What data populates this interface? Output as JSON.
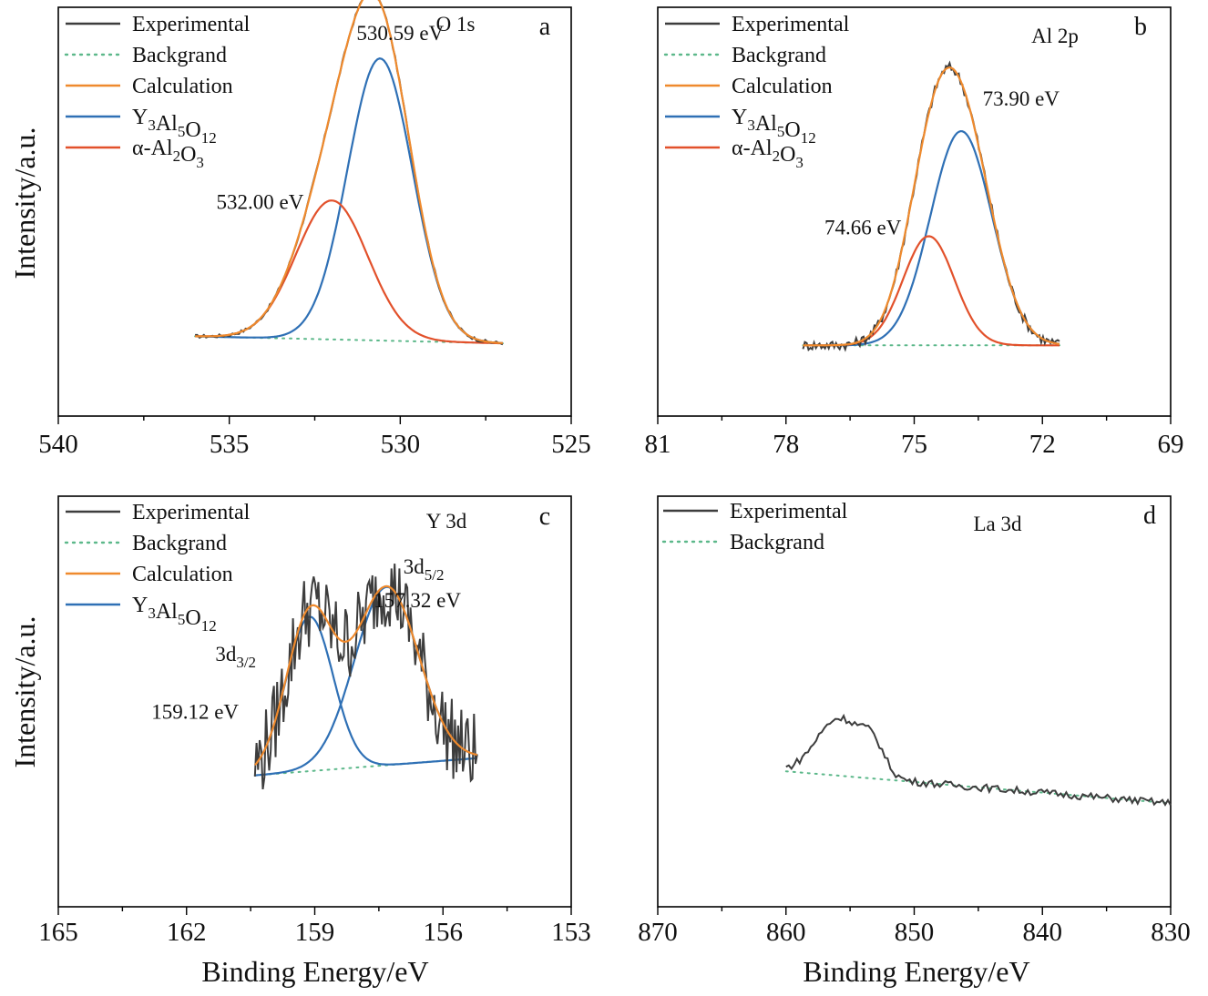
{
  "colors": {
    "experimental": "#3d3d3d",
    "background": "#5cb88a",
    "calculation": "#ef8a2d",
    "yag": "#2f70b5",
    "alumina": "#e2512b"
  },
  "y_axis_label": "Intensity/a.u.",
  "x_axis_label": "Binding Energy/eV",
  "chart_data": [
    {
      "panel": "a",
      "type": "line",
      "title": "O 1s",
      "xlim": [
        540,
        525
      ],
      "ylim": [
        0,
        1
      ],
      "x_ticks": [
        "540",
        "535",
        "530",
        "525"
      ],
      "x_tick_values": [
        540,
        535,
        530,
        525
      ],
      "x_range": [
        536,
        527
      ],
      "background_ends": [
        0.195,
        0.178
      ],
      "legend": [
        {
          "key": "experimental",
          "label": "Experimental",
          "style": "solid"
        },
        {
          "key": "background",
          "label": "Backgrand",
          "style": "dotted"
        },
        {
          "key": "calculation",
          "label": "Calculation",
          "style": "solid"
        },
        {
          "key": "yag",
          "label": "Y",
          "sub1": "3",
          "mid1": "Al",
          "sub2": "5",
          "mid2": "O",
          "sub3": "12",
          "style": "solid"
        },
        {
          "key": "alumina",
          "label": "α-Al",
          "sub1": "2",
          "mid1": "O",
          "sub2": "3",
          "style": "solid"
        }
      ],
      "peaks": [
        {
          "key": "yag",
          "center": 530.59,
          "amp": 0.69,
          "sigma": 0.95
        },
        {
          "key": "alumina",
          "center": 532.0,
          "amp": 0.34,
          "sigma": 1.05
        }
      ],
      "noise": 0.004,
      "annotations": [
        {
          "text": "530.59 eV",
          "x": 530.0,
          "y": 0.92
        },
        {
          "text": "532.00 eV",
          "x": 534.1,
          "y": 0.507
        }
      ]
    },
    {
      "panel": "b",
      "type": "line",
      "title": "Al 2p",
      "xlim": [
        81,
        69
      ],
      "ylim": [
        0,
        1
      ],
      "x_ticks": [
        "81",
        "78",
        "75",
        "72",
        "69"
      ],
      "x_tick_values": [
        81,
        78,
        75,
        72,
        69
      ],
      "x_range": [
        77.6,
        71.6
      ],
      "background_ends": [
        0.173,
        0.173
      ],
      "legend": [
        {
          "key": "experimental",
          "label": "Experimental",
          "style": "solid"
        },
        {
          "key": "background",
          "label": "Backgrand",
          "style": "dotted"
        },
        {
          "key": "calculation",
          "label": "Calculation",
          "style": "solid"
        },
        {
          "key": "yag",
          "label": "Y",
          "sub1": "3",
          "mid1": "Al",
          "sub2": "5",
          "mid2": "O",
          "sub3": "12",
          "style": "solid"
        },
        {
          "key": "alumina",
          "label": "α-Al",
          "sub1": "2",
          "mid1": "O",
          "sub2": "3",
          "style": "solid"
        }
      ],
      "peaks": [
        {
          "key": "yag",
          "center": 73.9,
          "amp": 0.524,
          "sigma": 0.72
        },
        {
          "key": "alumina",
          "center": 74.66,
          "amp": 0.267,
          "sigma": 0.6
        }
      ],
      "noise": 0.012,
      "annotations": [
        {
          "text": "73.90 eV",
          "x": 72.5,
          "y": 0.759
        },
        {
          "text": "74.66 eV",
          "x": 76.2,
          "y": 0.444
        }
      ]
    },
    {
      "panel": "c",
      "type": "line",
      "title": "Y 3d",
      "xlim": [
        165,
        153
      ],
      "ylim": [
        0,
        1
      ],
      "x_ticks": [
        "165",
        "162",
        "159",
        "156",
        "153"
      ],
      "x_tick_values": [
        165,
        162,
        159,
        156,
        153
      ],
      "x_range": [
        160.4,
        155.2
      ],
      "background_ends": [
        0.32,
        0.362
      ],
      "legend": [
        {
          "key": "experimental",
          "label": "Experimental",
          "style": "solid"
        },
        {
          "key": "background",
          "label": "Backgrand",
          "style": "dotted"
        },
        {
          "key": "calculation",
          "label": "Calculation",
          "style": "solid"
        },
        {
          "key": "yag",
          "label": "Y",
          "sub1": "3",
          "mid1": "Al",
          "sub2": "5",
          "mid2": "O",
          "sub3": "12",
          "style": "solid"
        }
      ],
      "peaks": [
        {
          "key": "yag",
          "center": 159.12,
          "amp": 0.376,
          "sigma": 0.55
        },
        {
          "key": "yag",
          "center": 157.32,
          "amp": 0.434,
          "sigma": 0.75
        }
      ],
      "noise": 0.1,
      "annotations": [
        {
          "text": "3d",
          "sub": "5/2",
          "x": 156.45,
          "y": 0.812
        },
        {
          "text": "157.32 eV",
          "x": 156.6,
          "y": 0.73
        },
        {
          "text": "3d",
          "sub": "3/2",
          "x": 160.85,
          "y": 0.599
        },
        {
          "text": "159.12 eV",
          "x": 161.8,
          "y": 0.458
        }
      ]
    },
    {
      "panel": "d",
      "type": "line",
      "title": "La 3d",
      "xlim": [
        870,
        830
      ],
      "ylim": [
        0,
        1
      ],
      "x_ticks": [
        "870",
        "860",
        "850",
        "840",
        "830"
      ],
      "x_tick_values": [
        870,
        860,
        850,
        840,
        830
      ],
      "x_range": [
        860,
        830
      ],
      "background_ends": [
        0.33,
        0.252
      ],
      "legend": [
        {
          "key": "experimental",
          "label": "Experimental",
          "style": "solid"
        },
        {
          "key": "background",
          "label": "Backgrand",
          "style": "dotted"
        }
      ],
      "peaks": [],
      "noise": 0.009,
      "annotations": []
    }
  ]
}
